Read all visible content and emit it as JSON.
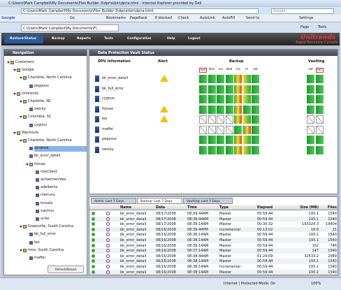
{
  "window": {
    "title": "C:\\Users\\Mark Campbell\\My Documents\\Flex Builder 3\\dpria\\bin\\dpria.html - Internet Explorer provided by Dell",
    "address": "C:\\Users\\Mark Campbell\\My Documents\\Flex Builder 3\\dpria\\bin\\dpria.html",
    "search": "Google",
    "tab": "C:\\Users\\Mark Campbell\\My Documents\\Fl...",
    "menu": [
      "Page",
      "Tools"
    ],
    "status": "Internet | Protected Mode: On",
    "zoom": "100%"
  },
  "google_toolbar": {
    "items": [
      "Google",
      "Go",
      "Bookmarks",
      "PageRank",
      "6 blocked",
      "Check",
      "AutoLink",
      "AutoFill",
      "Send to",
      "Settings"
    ]
  },
  "app": {
    "toolbar": [
      "Restore/Status",
      "Backup",
      "Reports",
      "Tools",
      "Configuration",
      "Help",
      "Logout"
    ],
    "brand": "Unitrends",
    "tagline": "Rapid Recovery Console"
  },
  "navigation": {
    "title": "Navigation",
    "button": "Refresh/Reload",
    "tree": [
      {
        "label": "Customers",
        "children": [
          {
            "label": "Google",
            "children": [
              {
                "label": "Charlotte, North Carolina",
                "children": [
                  {
                    "label": "pegasus"
                  }
                ]
              }
            ]
          },
          {
            "label": "Unitrends",
            "children": [
              {
                "label": "Charlotte, NC",
                "children": [
                  {
                    "label": "zwicky"
                  }
                ]
              },
              {
                "label": "Columbia, SC",
                "children": [
                  {
                    "label": "cygnus"
                  }
                ]
              }
            ]
          },
          {
            "label": "Wachovia",
            "children": [
              {
                "label": "Charlotte, North Carolina",
                "children": [
                  {
                    "label": "sirrahne",
                    "selected": true
                  },
                  {
                    "label": "bk_error_detail"
                  },
                  {
                    "label": "fornax",
                    "children": [
                      {
                        "label": "UseClient"
                      },
                      {
                        "label": "achaemenides"
                      },
                      {
                        "label": "adelberta"
                      },
                      {
                        "label": "mercury"
                      },
                      {
                        "label": "trovale"
                      },
                      {
                        "label": "vaichos"
                      },
                      {
                        "label": "urike"
                      }
                    ]
                  }
                ]
              },
              {
                "label": "Greenville, South Carolina",
                "children": [
                  {
                    "label": "bk_full_error"
                  },
                  {
                    "label": "leo"
                  }
                ]
              },
              {
                "label": "Irmo, South Carolina",
                "children": [
                  {
                    "label": "maffei"
                  }
                ]
              }
            ]
          }
        ]
      }
    ]
  },
  "vault": {
    "title": "Data Protection Vault Status",
    "headers": {
      "dpu": "DPU Information",
      "alert": "Alert",
      "backup": "Backup",
      "vaulting": "Vaulting"
    },
    "backup_days": [
      "Sun",
      "Mon",
      "Tue",
      "Wed",
      "Thu",
      "Fri",
      "Sat"
    ],
    "vault_days": [
      "Sat",
      "Sun"
    ],
    "rows": [
      {
        "name": "bk_error_detail",
        "alert": true,
        "backup": [
          "ok",
          "ok",
          "ok",
          "ok",
          "warn",
          "fail",
          "ok"
        ],
        "vaulting": [
          "ok",
          "ok"
        ]
      },
      {
        "name": "bk_full_error",
        "alert": false,
        "backup": [
          "ok",
          "ok",
          "ok",
          "ok",
          "warn",
          "fail",
          "ok"
        ],
        "vaulting": [
          "ok",
          "ok"
        ]
      },
      {
        "name": "cygnus",
        "alert": false,
        "backup": [
          "ok",
          "ok",
          "ok",
          "ok",
          "warn",
          "fail",
          "ok"
        ],
        "vaulting": [
          "ok",
          "ok"
        ]
      },
      {
        "name": "fornax",
        "alert": true,
        "backup": [
          "ok",
          "ok",
          "ok",
          "ok",
          "warn",
          "ok",
          "ok"
        ],
        "vaulting": [
          "ok",
          "ok"
        ]
      },
      {
        "name": "leo",
        "alert": true,
        "backup": [
          "none",
          "none",
          "none",
          "none",
          "warn",
          "fail",
          "ok"
        ],
        "vaulting": [
          "none",
          "none"
        ]
      },
      {
        "name": "maffei",
        "alert": false,
        "backup": [
          "none",
          "none",
          "none",
          "none",
          "ok",
          "warn",
          "ok"
        ],
        "vaulting": [
          "none",
          "none"
        ]
      },
      {
        "name": "pegasus",
        "alert": false,
        "backup": [
          "ok",
          "ok",
          "ok",
          "ok",
          "warn",
          "fail",
          "ok"
        ],
        "vaulting": [
          "ok",
          "ok"
        ]
      },
      {
        "name": "zwicky",
        "alert": false,
        "backup": [
          "ok",
          "ok",
          "ok",
          "ok",
          "warn",
          "fail",
          "ok"
        ],
        "vaulting": [
          "ok",
          "ok"
        ]
      }
    ]
  },
  "history": {
    "tabs": [
      "Alerts: Last 7 Days",
      "Backup: Last 7 Days",
      "Vaulting: Last 7 Days"
    ],
    "active_tab": 1,
    "columns": [
      "Name",
      "Date",
      "Time",
      "Type",
      "Elapsed",
      "Size (MB)",
      "Files"
    ],
    "rows": [
      [
        "bk_error_detail",
        "08/17/2008",
        "08:39:44AM",
        "Master",
        "00:59:44",
        "193.1",
        "1540"
      ],
      [
        "bk_error_detail",
        "08/17/2008",
        "08:39:44AM",
        "Master",
        "00:59:44",
        "193.1",
        "1540"
      ],
      [
        "bk_error_detail",
        "08/17/2008",
        "08:39:14AM",
        "Master",
        "00:30:32",
        "193324.3",
        "19404"
      ],
      [
        "bk_error_detail",
        "08/16/2008",
        "08:39:44PM",
        "Incremental",
        "00:13:02",
        "18.9",
        "21"
      ],
      [
        "bk_error_detail",
        "08/16/2008",
        "08:38:14AM",
        "Master",
        "00:59:44",
        "193.1",
        "1540"
      ],
      [
        "bk_error_detail",
        "08/16/2008",
        "08:38:14AM",
        "Master",
        "00:59:44",
        "193.1",
        "1540"
      ],
      [
        "bk_error_detail",
        "08/16/2008",
        "08:38:14AM",
        "Master",
        "00:59:44",
        "102",
        "746"
      ],
      [
        "bk_error_detail",
        "08/16/2008",
        "08:37:14AM",
        "Master",
        "00:59:44",
        "147",
        "1540"
      ],
      [
        "bk_error_detail",
        "08/16/2008",
        "08:38:44AM",
        "Master",
        "01:24:09",
        "32533.2",
        "2049"
      ],
      [
        "bk_error_detail",
        "08/16/2008",
        "08:38:14AM",
        "Master",
        "00:59:44",
        "193.1",
        "1540"
      ],
      [
        "bk_error_detail",
        "08/16/2008",
        "08:38:14AM",
        "Incremental",
        "00:59:44",
        "193.1",
        "1540"
      ],
      [
        "bk_error_detail",
        "08/16/2008",
        "08:38:14AM",
        "Master",
        "00:59:44",
        "193.1",
        "1540"
      ]
    ]
  }
}
